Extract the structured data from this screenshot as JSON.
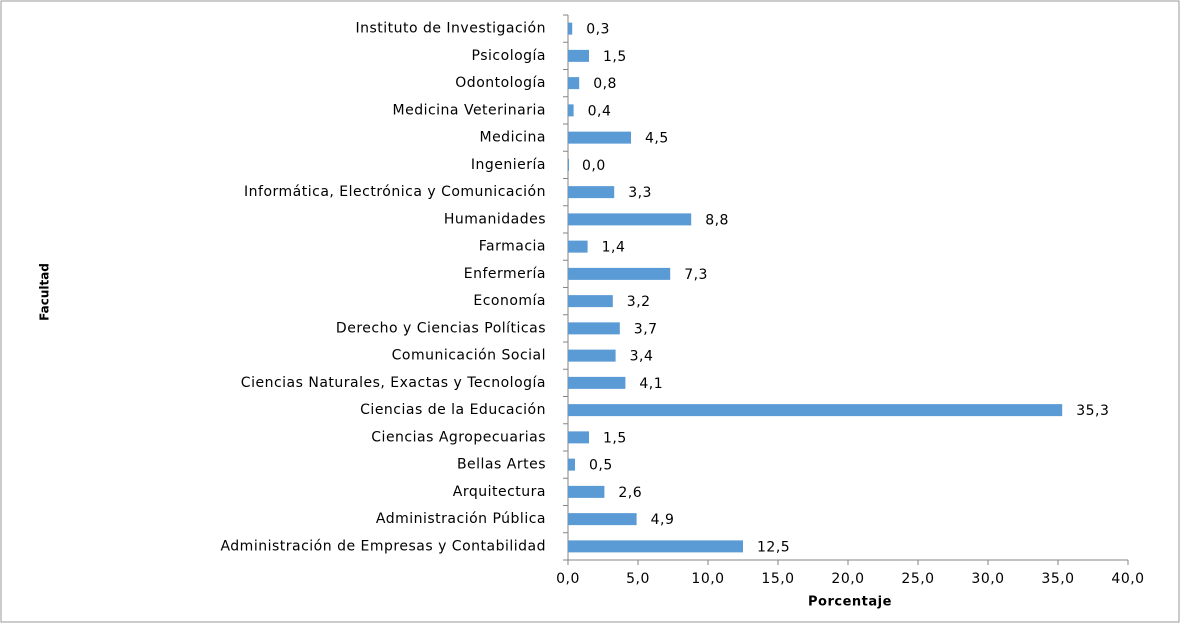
{
  "chart_data": {
    "type": "barh",
    "x_label": "Porcentaje",
    "y_label": "Facultad",
    "categories": [
      "Administración de Empresas y Contabilidad",
      "Administración Pública",
      "Arquitectura",
      "Bellas Artes",
      "Ciencias Agropecuarias",
      "Ciencias de la Educación",
      "Ciencias Naturales, Exactas y Tecnología",
      "Comunicación Social",
      "Derecho y Ciencias Políticas",
      "Economía",
      "Enfermería",
      "Farmacia",
      "Humanidades",
      "Informática, Electrónica y Comunicación",
      "Ingeniería",
      "Medicina",
      "Medicina Veterinaria",
      "Odontología",
      "Psicología",
      "Instituto de Investigación"
    ],
    "values": [
      12.5,
      4.9,
      2.6,
      0.5,
      1.5,
      35.3,
      4.1,
      3.4,
      3.7,
      3.2,
      7.3,
      1.4,
      8.8,
      3.3,
      0.0,
      4.5,
      0.4,
      0.8,
      1.5,
      0.3
    ],
    "value_labels": [
      "12,5",
      "4,9",
      "2,6",
      "0,5",
      "1,5",
      "35,3",
      "4,1",
      "3,4",
      "3,7",
      "3,2",
      "7,3",
      "1,4",
      "8,8",
      "3,3",
      "0,0",
      "4,5",
      "0,4",
      "0,8",
      "1,5",
      "0,3"
    ],
    "color": "#5b9bd5",
    "xlim": [
      0,
      40
    ],
    "xticks": [
      {
        "value": 0,
        "label": "0,0"
      },
      {
        "value": 5,
        "label": "5,0"
      },
      {
        "value": 10,
        "label": "10,0"
      },
      {
        "value": 15,
        "label": "15,0"
      },
      {
        "value": 20,
        "label": "20,0"
      },
      {
        "value": 25,
        "label": "25,0"
      },
      {
        "value": 30,
        "label": "30,0"
      },
      {
        "value": 35,
        "label": "35,0"
      },
      {
        "value": 40,
        "label": "40,0"
      }
    ],
    "grid": false
  }
}
